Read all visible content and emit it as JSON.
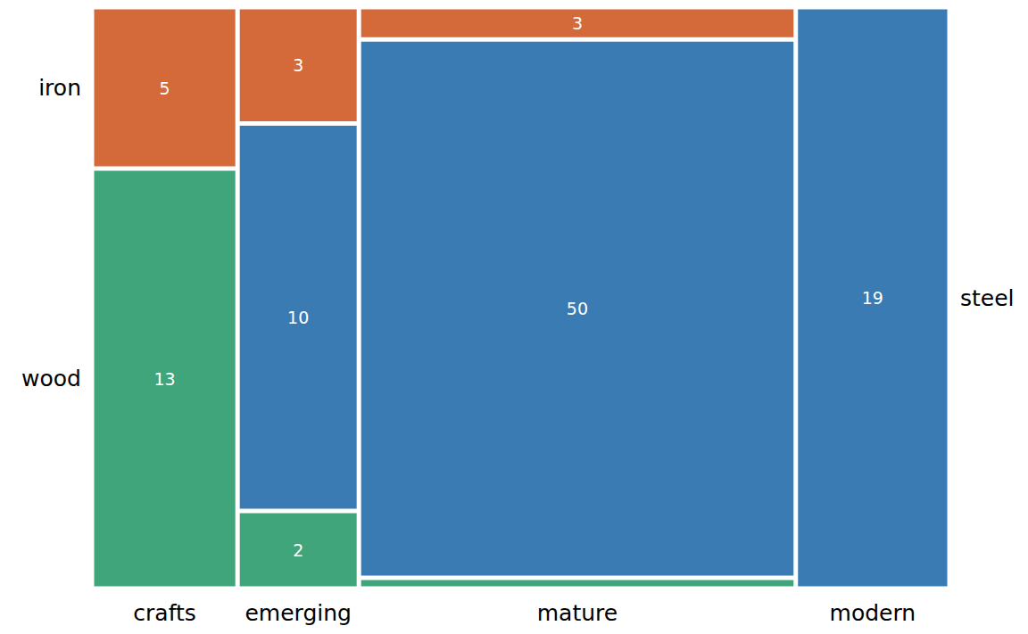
{
  "chart_data": {
    "type": "mosaic",
    "categories": [
      "crafts",
      "emerging",
      "mature",
      "modern"
    ],
    "series": [
      {
        "name": "wood",
        "color": "#41a57c",
        "values": [
          13,
          2,
          1,
          null
        ],
        "value_labels": [
          "13",
          "2",
          null,
          null
        ]
      },
      {
        "name": "steel",
        "color": "#3a7bb3",
        "values": [
          null,
          10,
          50,
          19
        ],
        "value_labels": [
          null,
          "10",
          "50",
          "19"
        ]
      },
      {
        "name": "iron",
        "color": "#d4693a",
        "values": [
          5,
          3,
          3,
          null
        ],
        "value_labels": [
          "5",
          "3",
          "3",
          null
        ]
      }
    ],
    "data_labels": true,
    "tick_labels": false
  }
}
